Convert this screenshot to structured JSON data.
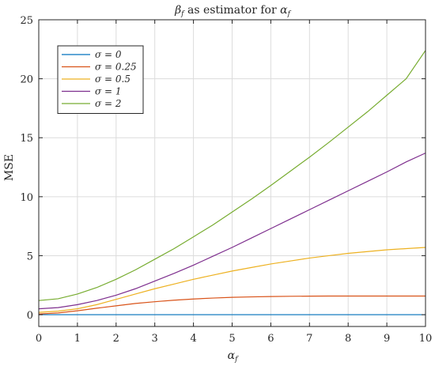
{
  "chart_data": {
    "type": "line",
    "title": "βf as estimator for αf",
    "title_main": "β",
    "title_sub": "f",
    "title_mid": " as estimator for ",
    "title_main2": "α",
    "title_sub2": "f",
    "xlabel": "α",
    "xlabel_sub": "f",
    "ylabel": "MSE",
    "xlim": [
      0,
      10
    ],
    "ylim": [
      -1,
      25
    ],
    "xticks": [
      0,
      1,
      2,
      3,
      4,
      5,
      6,
      7,
      8,
      9,
      10
    ],
    "yticks": [
      0,
      5,
      10,
      15,
      20,
      25
    ],
    "grid": true,
    "legend_position": "top-left",
    "x": [
      0,
      0.5,
      1,
      1.5,
      2,
      2.5,
      3,
      3.5,
      4,
      4.5,
      5,
      5.5,
      6,
      6.5,
      7,
      7.5,
      8,
      8.5,
      9,
      9.5,
      10
    ],
    "series": [
      {
        "name": "σ = 0",
        "color": "#0072BD",
        "values": [
          0,
          0,
          0,
          0,
          0,
          0,
          0,
          0,
          0,
          0,
          0,
          0,
          0,
          0,
          0,
          0,
          0,
          0,
          0,
          0,
          0
        ]
      },
      {
        "name": "σ = 0.25",
        "color": "#D95319",
        "values": [
          0.06,
          0.15,
          0.33,
          0.55,
          0.75,
          0.95,
          1.1,
          1.23,
          1.33,
          1.41,
          1.47,
          1.51,
          1.54,
          1.56,
          1.57,
          1.58,
          1.58,
          1.58,
          1.58,
          1.58,
          1.58
        ]
      },
      {
        "name": "σ = 0.5",
        "color": "#EDB120",
        "values": [
          0.2,
          0.3,
          0.5,
          0.85,
          1.3,
          1.75,
          2.2,
          2.6,
          3.0,
          3.35,
          3.7,
          4.0,
          4.3,
          4.55,
          4.8,
          5.0,
          5.2,
          5.35,
          5.5,
          5.6,
          5.7
        ]
      },
      {
        "name": "σ = 1",
        "color": "#7E2F8E",
        "values": [
          0.5,
          0.6,
          0.85,
          1.2,
          1.65,
          2.2,
          2.85,
          3.5,
          4.2,
          4.95,
          5.7,
          6.5,
          7.3,
          8.1,
          8.9,
          9.7,
          10.5,
          11.3,
          12.1,
          12.95,
          13.7
        ]
      },
      {
        "name": "σ = 2",
        "color": "#77AC30",
        "values": [
          1.2,
          1.35,
          1.75,
          2.3,
          3.0,
          3.8,
          4.7,
          5.6,
          6.6,
          7.6,
          8.7,
          9.8,
          10.95,
          12.15,
          13.35,
          14.6,
          15.9,
          17.2,
          18.6,
          20.0,
          22.4
        ]
      }
    ]
  }
}
